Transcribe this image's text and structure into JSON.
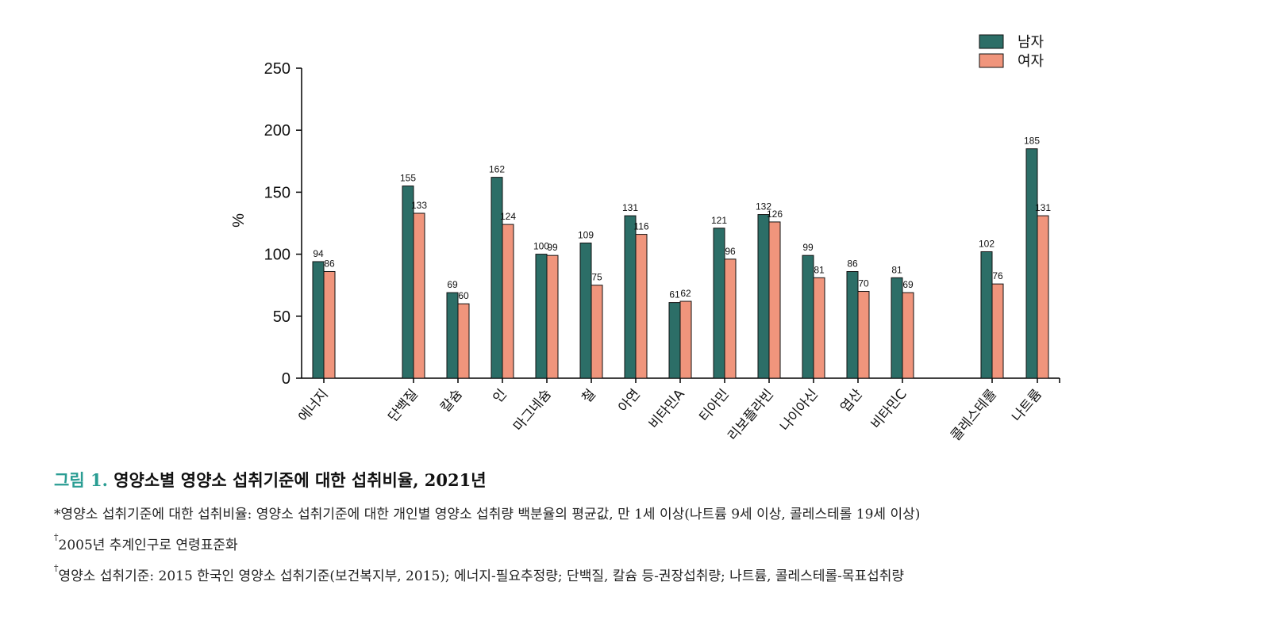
{
  "colors": {
    "male": "#2c6e67",
    "female": "#f0957c",
    "figure_label": "#2a9d93"
  },
  "chart_data": {
    "type": "bar",
    "ylabel": "%",
    "ylim": [
      0,
      250
    ],
    "yticks": [
      0,
      50,
      100,
      150,
      200,
      250
    ],
    "legend_position": "top-right",
    "grid": false,
    "categories": [
      "에너지",
      "단백질",
      "칼슘",
      "인",
      "마그네슘",
      "철",
      "아연",
      "비타민A",
      "티아민",
      "리보플라빈",
      "나이아신",
      "엽산",
      "비타민C",
      "콜레스테롤",
      "나트륨"
    ],
    "series": [
      {
        "name": "남자",
        "values": [
          94,
          155,
          69,
          162,
          100,
          109,
          131,
          61,
          121,
          132,
          99,
          86,
          81,
          102,
          185
        ]
      },
      {
        "name": "여자",
        "values": [
          86,
          133,
          60,
          124,
          99,
          75,
          116,
          62,
          96,
          126,
          81,
          70,
          69,
          76,
          131
        ]
      }
    ]
  },
  "caption": {
    "figure_label": "그림 1.",
    "title": "영양소별 영양소 섭취기준에 대한 섭취비율, 2021년",
    "note1": "*영양소 섭취기준에 대한 섭취비율: 영양소 섭취기준에 대한 개인별 영양소 섭취량 백분율의 평균값, 만 1세 이상(나트륨 9세 이상, 콜레스테롤 19세 이상)",
    "note2_mark": "†",
    "note2": "2005년 추계인구로 연령표준화",
    "note3_mark": "†",
    "note3": "영양소 섭취기준: 2015 한국인 영양소 섭취기준(보건복지부, 2015); 에너지-필요추정량; 단백질, 칼슘 등-권장섭취량; 나트륨, 콜레스테롤-목표섭취량"
  }
}
